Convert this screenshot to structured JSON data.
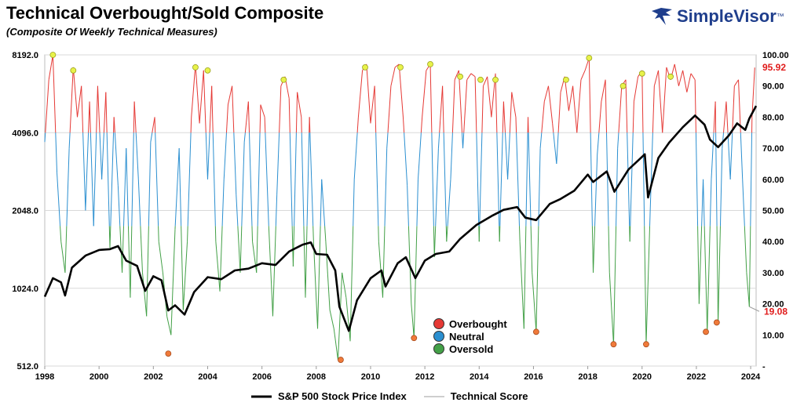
{
  "header": {
    "title": "Technical Overbought/Sold Composite",
    "subtitle": "(Composite Of Weekly Technical Measures)"
  },
  "brand": {
    "name": "SimpleVisor",
    "tm": "™",
    "logo_icon": "eagle-icon",
    "color": "#1f3e8c"
  },
  "legend_categories": [
    {
      "label": "Overbought",
      "color": "#e53935"
    },
    {
      "label": "Neutral",
      "color": "#2b8fd0"
    },
    {
      "label": "Oversold",
      "color": "#43a047"
    }
  ],
  "legend_series": [
    {
      "label": "S&P 500 Stock Price Index",
      "color": "#000000"
    },
    {
      "label": "Technical Score",
      "color": "#9e9e9e"
    }
  ],
  "chart_data": {
    "type": "line",
    "x_ticks": [
      "1998",
      "2000",
      "2002",
      "2004",
      "2006",
      "2008",
      "2010",
      "2012",
      "2014",
      "2016",
      "2018",
      "2020",
      "2022",
      "2024"
    ],
    "xlim": [
      1998,
      2024.2
    ],
    "y_left": {
      "ticks": [
        "8192.0",
        "4096.0",
        "2048.0",
        "1024.0",
        "512.0"
      ],
      "scale": "log2",
      "range": [
        512,
        8192
      ]
    },
    "y_right": {
      "ticks": [
        "100.00",
        "90.00",
        "80.00",
        "70.00",
        "60.00",
        "50.00",
        "40.00",
        "30.00",
        "20.00",
        "10.00",
        "-"
      ],
      "range": [
        0,
        100
      ]
    },
    "thresholds": {
      "overbought": 75,
      "oversold": 45
    },
    "last_values": {
      "high": "95.92",
      "low": "19.08"
    },
    "series": [
      {
        "name": "S&P 500 Stock Price Index",
        "axis": "left",
        "points": [
          [
            1998.0,
            950
          ],
          [
            1998.3,
            1120
          ],
          [
            1998.6,
            1080
          ],
          [
            1998.75,
            960
          ],
          [
            1999.0,
            1230
          ],
          [
            1999.5,
            1370
          ],
          [
            2000.0,
            1440
          ],
          [
            2000.4,
            1450
          ],
          [
            2000.7,
            1490
          ],
          [
            2001.0,
            1310
          ],
          [
            2001.4,
            1250
          ],
          [
            2001.7,
            1000
          ],
          [
            2002.0,
            1140
          ],
          [
            2002.3,
            1100
          ],
          [
            2002.55,
            840
          ],
          [
            2002.8,
            880
          ],
          [
            2003.15,
            810
          ],
          [
            2003.5,
            990
          ],
          [
            2004.0,
            1130
          ],
          [
            2004.5,
            1110
          ],
          [
            2005.0,
            1200
          ],
          [
            2005.5,
            1220
          ],
          [
            2006.0,
            1280
          ],
          [
            2006.5,
            1260
          ],
          [
            2007.0,
            1420
          ],
          [
            2007.5,
            1510
          ],
          [
            2007.8,
            1540
          ],
          [
            2008.0,
            1390
          ],
          [
            2008.4,
            1380
          ],
          [
            2008.7,
            1200
          ],
          [
            2008.85,
            870
          ],
          [
            2009.2,
            700
          ],
          [
            2009.5,
            920
          ],
          [
            2010.0,
            1120
          ],
          [
            2010.4,
            1200
          ],
          [
            2010.55,
            1040
          ],
          [
            2011.0,
            1280
          ],
          [
            2011.3,
            1350
          ],
          [
            2011.65,
            1120
          ],
          [
            2012.0,
            1310
          ],
          [
            2012.4,
            1390
          ],
          [
            2012.9,
            1420
          ],
          [
            2013.3,
            1590
          ],
          [
            2013.9,
            1800
          ],
          [
            2014.5,
            1960
          ],
          [
            2014.9,
            2060
          ],
          [
            2015.4,
            2110
          ],
          [
            2015.7,
            1920
          ],
          [
            2016.1,
            1880
          ],
          [
            2016.6,
            2170
          ],
          [
            2017.0,
            2270
          ],
          [
            2017.5,
            2440
          ],
          [
            2018.0,
            2820
          ],
          [
            2018.2,
            2640
          ],
          [
            2018.7,
            2900
          ],
          [
            2018.98,
            2420
          ],
          [
            2019.5,
            2950
          ],
          [
            2019.9,
            3230
          ],
          [
            2020.1,
            3380
          ],
          [
            2020.22,
            2300
          ],
          [
            2020.6,
            3270
          ],
          [
            2021.0,
            3750
          ],
          [
            2021.5,
            4300
          ],
          [
            2021.95,
            4770
          ],
          [
            2022.3,
            4400
          ],
          [
            2022.5,
            3850
          ],
          [
            2022.8,
            3600
          ],
          [
            2023.2,
            4000
          ],
          [
            2023.5,
            4450
          ],
          [
            2023.8,
            4200
          ],
          [
            2023.95,
            4650
          ],
          [
            2024.2,
            5200
          ]
        ]
      },
      {
        "name": "Technical Score",
        "axis": "right",
        "zones": [
          [
            75,
            "#e53935"
          ],
          [
            45,
            "#2b8fd0"
          ],
          [
            0,
            "#43a047"
          ]
        ],
        "points": [
          [
            1998.0,
            72
          ],
          [
            1998.15,
            92
          ],
          [
            1998.3,
            100
          ],
          [
            1998.45,
            62
          ],
          [
            1998.6,
            40
          ],
          [
            1998.75,
            30
          ],
          [
            1998.9,
            70
          ],
          [
            1999.05,
            96
          ],
          [
            1999.2,
            80
          ],
          [
            1999.35,
            90
          ],
          [
            1999.5,
            50
          ],
          [
            1999.65,
            85
          ],
          [
            1999.8,
            45
          ],
          [
            1999.95,
            90
          ],
          [
            2000.1,
            60
          ],
          [
            2000.25,
            88
          ],
          [
            2000.4,
            38
          ],
          [
            2000.55,
            80
          ],
          [
            2000.7,
            58
          ],
          [
            2000.85,
            30
          ],
          [
            2001.0,
            70
          ],
          [
            2001.15,
            22
          ],
          [
            2001.3,
            85
          ],
          [
            2001.45,
            60
          ],
          [
            2001.6,
            30
          ],
          [
            2001.75,
            16
          ],
          [
            2001.9,
            72
          ],
          [
            2002.05,
            80
          ],
          [
            2002.2,
            40
          ],
          [
            2002.35,
            30
          ],
          [
            2002.5,
            16
          ],
          [
            2002.65,
            10
          ],
          [
            2002.8,
            44
          ],
          [
            2002.95,
            70
          ],
          [
            2003.1,
            18
          ],
          [
            2003.25,
            40
          ],
          [
            2003.4,
            80
          ],
          [
            2003.55,
            97
          ],
          [
            2003.7,
            78
          ],
          [
            2003.85,
            95
          ],
          [
            2004.0,
            60
          ],
          [
            2004.15,
            90
          ],
          [
            2004.3,
            40
          ],
          [
            2004.45,
            24
          ],
          [
            2004.6,
            60
          ],
          [
            2004.75,
            84
          ],
          [
            2004.9,
            90
          ],
          [
            2005.05,
            55
          ],
          [
            2005.2,
            30
          ],
          [
            2005.35,
            72
          ],
          [
            2005.5,
            85
          ],
          [
            2005.65,
            40
          ],
          [
            2005.8,
            30
          ],
          [
            2005.95,
            84
          ],
          [
            2006.1,
            80
          ],
          [
            2006.25,
            45
          ],
          [
            2006.4,
            16
          ],
          [
            2006.55,
            55
          ],
          [
            2006.7,
            90
          ],
          [
            2006.85,
            93
          ],
          [
            2007.0,
            86
          ],
          [
            2007.15,
            32
          ],
          [
            2007.3,
            88
          ],
          [
            2007.45,
            80
          ],
          [
            2007.6,
            22
          ],
          [
            2007.75,
            80
          ],
          [
            2007.9,
            40
          ],
          [
            2008.05,
            12
          ],
          [
            2008.2,
            60
          ],
          [
            2008.35,
            40
          ],
          [
            2008.5,
            18
          ],
          [
            2008.65,
            12
          ],
          [
            2008.8,
            2
          ],
          [
            2008.95,
            30
          ],
          [
            2009.1,
            22
          ],
          [
            2009.25,
            8
          ],
          [
            2009.4,
            60
          ],
          [
            2009.55,
            80
          ],
          [
            2009.7,
            95
          ],
          [
            2009.85,
            97
          ],
          [
            2010.0,
            78
          ],
          [
            2010.15,
            90
          ],
          [
            2010.3,
            40
          ],
          [
            2010.45,
            22
          ],
          [
            2010.6,
            70
          ],
          [
            2010.75,
            90
          ],
          [
            2010.9,
            96
          ],
          [
            2011.05,
            97
          ],
          [
            2011.2,
            80
          ],
          [
            2011.35,
            58
          ],
          [
            2011.5,
            20
          ],
          [
            2011.6,
            9
          ],
          [
            2011.75,
            60
          ],
          [
            2011.9,
            80
          ],
          [
            2012.05,
            95
          ],
          [
            2012.2,
            97
          ],
          [
            2012.35,
            35
          ],
          [
            2012.5,
            70
          ],
          [
            2012.65,
            90
          ],
          [
            2012.8,
            40
          ],
          [
            2012.95,
            60
          ],
          [
            2013.1,
            92
          ],
          [
            2013.25,
            95
          ],
          [
            2013.4,
            70
          ],
          [
            2013.55,
            92
          ],
          [
            2013.7,
            94
          ],
          [
            2013.85,
            93
          ],
          [
            2014.0,
            40
          ],
          [
            2014.15,
            90
          ],
          [
            2014.3,
            93
          ],
          [
            2014.45,
            80
          ],
          [
            2014.6,
            94
          ],
          [
            2014.75,
            40
          ],
          [
            2014.9,
            85
          ],
          [
            2015.05,
            60
          ],
          [
            2015.2,
            88
          ],
          [
            2015.35,
            80
          ],
          [
            2015.5,
            40
          ],
          [
            2015.65,
            12
          ],
          [
            2015.8,
            80
          ],
          [
            2015.95,
            30
          ],
          [
            2016.1,
            11
          ],
          [
            2016.25,
            70
          ],
          [
            2016.4,
            85
          ],
          [
            2016.55,
            90
          ],
          [
            2016.7,
            78
          ],
          [
            2016.85,
            65
          ],
          [
            2017.0,
            88
          ],
          [
            2017.15,
            93
          ],
          [
            2017.3,
            82
          ],
          [
            2017.45,
            90
          ],
          [
            2017.6,
            75
          ],
          [
            2017.75,
            92
          ],
          [
            2017.9,
            95
          ],
          [
            2018.05,
            99
          ],
          [
            2018.2,
            30
          ],
          [
            2018.35,
            68
          ],
          [
            2018.5,
            85
          ],
          [
            2018.65,
            92
          ],
          [
            2018.8,
            30
          ],
          [
            2018.95,
            7
          ],
          [
            2019.1,
            70
          ],
          [
            2019.25,
            90
          ],
          [
            2019.4,
            92
          ],
          [
            2019.55,
            40
          ],
          [
            2019.7,
            85
          ],
          [
            2019.85,
            93
          ],
          [
            2020.0,
            95
          ],
          [
            2020.15,
            7
          ],
          [
            2020.3,
            50
          ],
          [
            2020.45,
            90
          ],
          [
            2020.6,
            95
          ],
          [
            2020.75,
            75
          ],
          [
            2020.9,
            96
          ],
          [
            2021.05,
            92
          ],
          [
            2021.2,
            97
          ],
          [
            2021.35,
            90
          ],
          [
            2021.5,
            95
          ],
          [
            2021.65,
            88
          ],
          [
            2021.8,
            94
          ],
          [
            2021.95,
            92
          ],
          [
            2022.1,
            20
          ],
          [
            2022.25,
            60
          ],
          [
            2022.4,
            11
          ],
          [
            2022.55,
            60
          ],
          [
            2022.7,
            85
          ],
          [
            2022.8,
            14
          ],
          [
            2022.95,
            70
          ],
          [
            2023.1,
            85
          ],
          [
            2023.25,
            60
          ],
          [
            2023.4,
            90
          ],
          [
            2023.55,
            92
          ],
          [
            2023.7,
            60
          ],
          [
            2023.85,
            30
          ],
          [
            2023.95,
            19.08
          ],
          [
            2024.05,
            80
          ],
          [
            2024.15,
            95.92
          ]
        ]
      }
    ],
    "markers": {
      "overbought": [
        [
          1998.3,
          100
        ],
        [
          1999.05,
          95
        ],
        [
          2003.55,
          96
        ],
        [
          2004.0,
          95
        ],
        [
          2006.8,
          92
        ],
        [
          2009.8,
          96
        ],
        [
          2011.1,
          96
        ],
        [
          2012.2,
          97
        ],
        [
          2013.3,
          93
        ],
        [
          2014.05,
          92
        ],
        [
          2014.6,
          92
        ],
        [
          2017.2,
          92
        ],
        [
          2018.05,
          99
        ],
        [
          2019.3,
          90
        ],
        [
          2020.0,
          94
        ],
        [
          2021.05,
          93
        ]
      ],
      "oversold": [
        [
          2002.55,
          4
        ],
        [
          2008.9,
          2
        ],
        [
          2011.6,
          9
        ],
        [
          2016.1,
          11
        ],
        [
          2018.95,
          7
        ],
        [
          2020.15,
          7
        ],
        [
          2022.35,
          11
        ],
        [
          2022.75,
          14
        ]
      ]
    }
  }
}
